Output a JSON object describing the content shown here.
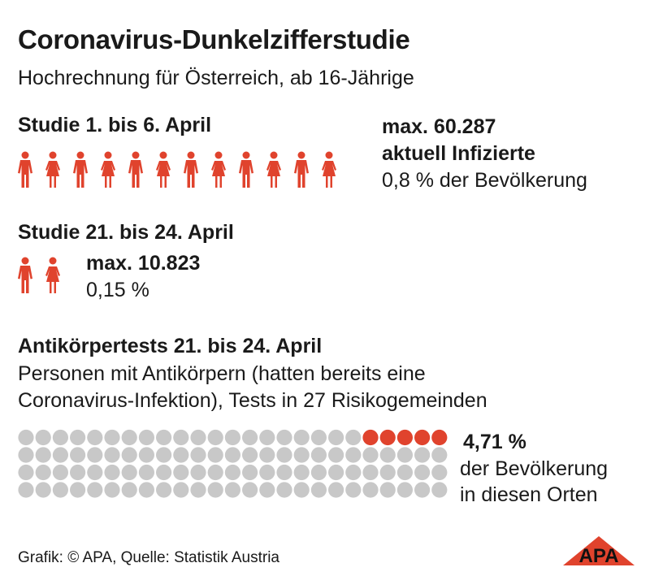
{
  "title": "Coronavirus-Dunkelzifferstudie",
  "subtitle": "Hochrechnung für Österreich, ab 16-Jährige",
  "colors": {
    "accent": "#e0432d",
    "gray": "#c8c8c8",
    "text": "#1a1a1a"
  },
  "study1": {
    "heading": "Studie 1. bis 6. April",
    "value_label": "max. 60.287",
    "value_desc": "aktuell Infizierte",
    "percent_label": "0,8 % der Bevölkerung",
    "icon_count": 12
  },
  "study2": {
    "heading": "Studie 21. bis 24. April",
    "value_label": "max. 10.823",
    "percent_label": "0,15 %",
    "icon_count": 2
  },
  "antibody": {
    "heading": "Antikörpertests 21. bis 24. April",
    "desc_line1": "Personen mit Antikörpern (hatten bereits eine",
    "desc_line2": "Coronavirus-Infektion), Tests in 27 Risikogemeinden",
    "percent_label": "4,71 %",
    "desc2_line1": "der Bevölkerung",
    "desc2_line2": "in diesen Orten"
  },
  "chart_data": {
    "type": "waffle",
    "rows": 4,
    "cols": 25,
    "highlighted": 5,
    "value_percent": 4.71
  },
  "footer": "Grafik: © APA, Quelle: Statistik Austria",
  "logo": {
    "name": "apa-logo",
    "text": "APA"
  }
}
